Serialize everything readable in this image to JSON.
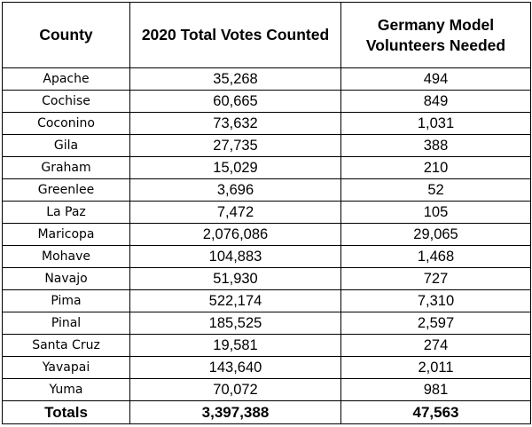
{
  "table": {
    "headers": {
      "county": "County",
      "votes": "2020 Total Votes Counted",
      "volunteers": "Germany Model Volunteers Needed"
    },
    "rows": [
      {
        "county": "Apache",
        "votes": "35,268",
        "volunteers": "494"
      },
      {
        "county": "Cochise",
        "votes": "60,665",
        "volunteers": "849"
      },
      {
        "county": "Coconino",
        "votes": "73,632",
        "volunteers": "1,031"
      },
      {
        "county": "Gila",
        "votes": "27,735",
        "volunteers": "388"
      },
      {
        "county": "Graham",
        "votes": "15,029",
        "volunteers": "210"
      },
      {
        "county": "Greenlee",
        "votes": "3,696",
        "volunteers": "52"
      },
      {
        "county": "La Paz",
        "votes": "7,472",
        "volunteers": "105"
      },
      {
        "county": "Maricopa",
        "votes": "2,076,086",
        "volunteers": "29,065"
      },
      {
        "county": "Mohave",
        "votes": "104,883",
        "volunteers": "1,468"
      },
      {
        "county": "Navajo",
        "votes": "51,930",
        "volunteers": "727"
      },
      {
        "county": "Pima",
        "votes": "522,174",
        "volunteers": "7,310"
      },
      {
        "county": "Pinal",
        "votes": "185,525",
        "volunteers": "2,597"
      },
      {
        "county": "Santa Cruz",
        "votes": "19,581",
        "volunteers": "274"
      },
      {
        "county": "Yavapai",
        "votes": "143,640",
        "volunteers": "2,011"
      },
      {
        "county": "Yuma",
        "votes": "70,072",
        "volunteers": "981"
      }
    ],
    "totals": {
      "label": "Totals",
      "votes": "3,397,388",
      "volunteers": "47,563"
    }
  }
}
